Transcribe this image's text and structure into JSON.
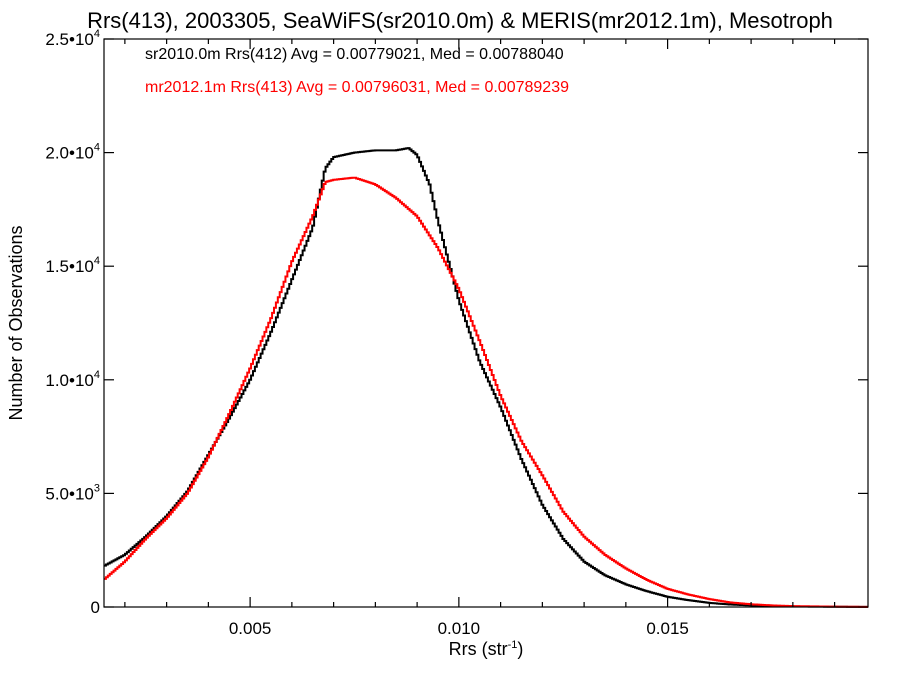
{
  "chart_data": {
    "type": "line",
    "title": "Rrs(413), 2003305, SeaWiFS(sr2010.0m) & MERIS(mr2012.1m), Mesotroph",
    "xlabel": "Rrs (str",
    "xlabel_sup": "-1",
    "xlabel_close": ")",
    "ylabel": "Number of Observations",
    "xlim": [
      0.0015,
      0.0198
    ],
    "ylim": [
      0,
      25000
    ],
    "x_ticks": [
      {
        "value": 0.005,
        "label": "0.005"
      },
      {
        "value": 0.01,
        "label": "0.010"
      },
      {
        "value": 0.015,
        "label": "0.015"
      }
    ],
    "y_ticks": [
      {
        "value": 0,
        "mant": "0",
        "exp": ""
      },
      {
        "value": 5000,
        "mant": "5.0•10",
        "exp": "3"
      },
      {
        "value": 10000,
        "mant": "1.0•10",
        "exp": "4"
      },
      {
        "value": 15000,
        "mant": "1.5•10",
        "exp": "4"
      },
      {
        "value": 20000,
        "mant": "2.0•10",
        "exp": "4"
      },
      {
        "value": 25000,
        "mant": "2.5•10",
        "exp": "4"
      }
    ],
    "grid": false,
    "legend_position": "top-left",
    "series": [
      {
        "name": "sr2010.0m Rrs(412) Avg = 0.00779021, Med = 0.00788040",
        "color": "#000000",
        "points": [
          [
            0.0015,
            1800
          ],
          [
            0.002,
            2300
          ],
          [
            0.0025,
            3100
          ],
          [
            0.003,
            4000
          ],
          [
            0.0035,
            5100
          ],
          [
            0.004,
            6700
          ],
          [
            0.0045,
            8300
          ],
          [
            0.005,
            10000
          ],
          [
            0.0055,
            12100
          ],
          [
            0.006,
            14400
          ],
          [
            0.0065,
            16700
          ],
          [
            0.0068,
            19300
          ],
          [
            0.007,
            19800
          ],
          [
            0.0075,
            20000
          ],
          [
            0.008,
            20100
          ],
          [
            0.0085,
            20100
          ],
          [
            0.0088,
            20200
          ],
          [
            0.009,
            19900
          ],
          [
            0.0093,
            18600
          ],
          [
            0.0095,
            17000
          ],
          [
            0.01,
            13500
          ],
          [
            0.0105,
            10800
          ],
          [
            0.011,
            8800
          ],
          [
            0.0115,
            6500
          ],
          [
            0.012,
            4500
          ],
          [
            0.0125,
            3000
          ],
          [
            0.013,
            2000
          ],
          [
            0.0135,
            1400
          ],
          [
            0.014,
            1000
          ],
          [
            0.0145,
            700
          ],
          [
            0.015,
            450
          ],
          [
            0.0155,
            300
          ],
          [
            0.016,
            180
          ],
          [
            0.0165,
            110
          ],
          [
            0.017,
            70
          ],
          [
            0.0175,
            40
          ],
          [
            0.018,
            25
          ],
          [
            0.019,
            10
          ],
          [
            0.0198,
            5
          ]
        ]
      },
      {
        "name": "mr2012.1m Rrs(413) Avg = 0.00796031, Med = 0.00789239",
        "color": "#ff0000",
        "points": [
          [
            0.0015,
            1200
          ],
          [
            0.002,
            2000
          ],
          [
            0.0025,
            3000
          ],
          [
            0.003,
            3900
          ],
          [
            0.0035,
            5000
          ],
          [
            0.004,
            6600
          ],
          [
            0.0045,
            8500
          ],
          [
            0.005,
            10500
          ],
          [
            0.0055,
            12700
          ],
          [
            0.006,
            15200
          ],
          [
            0.0065,
            17200
          ],
          [
            0.0068,
            18700
          ],
          [
            0.007,
            18800
          ],
          [
            0.0075,
            18900
          ],
          [
            0.008,
            18600
          ],
          [
            0.0085,
            18000
          ],
          [
            0.009,
            17200
          ],
          [
            0.0095,
            15800
          ],
          [
            0.01,
            14000
          ],
          [
            0.0105,
            11700
          ],
          [
            0.011,
            9300
          ],
          [
            0.0115,
            7300
          ],
          [
            0.012,
            5800
          ],
          [
            0.0125,
            4200
          ],
          [
            0.013,
            3100
          ],
          [
            0.0135,
            2300
          ],
          [
            0.014,
            1700
          ],
          [
            0.0145,
            1200
          ],
          [
            0.015,
            800
          ],
          [
            0.0155,
            550
          ],
          [
            0.016,
            350
          ],
          [
            0.0165,
            200
          ],
          [
            0.017,
            120
          ],
          [
            0.0175,
            70
          ],
          [
            0.018,
            40
          ],
          [
            0.019,
            15
          ],
          [
            0.0198,
            5
          ]
        ]
      }
    ]
  }
}
